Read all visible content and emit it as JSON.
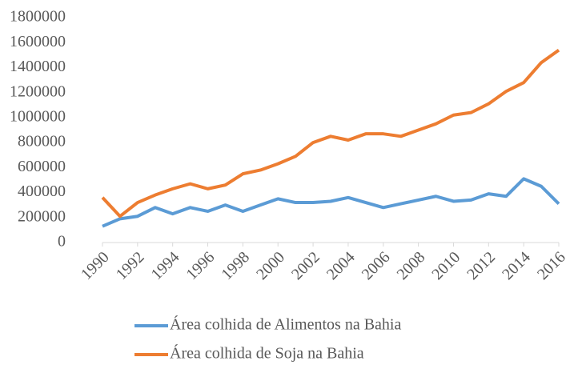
{
  "chart_data": {
    "type": "line",
    "x": [
      1990,
      1991,
      1992,
      1993,
      1994,
      1995,
      1996,
      1997,
      1998,
      1999,
      2000,
      2001,
      2002,
      2003,
      2004,
      2005,
      2006,
      2007,
      2008,
      2009,
      2010,
      2011,
      2012,
      2013,
      2014,
      2015,
      2016
    ],
    "xlim": [
      1990,
      2016
    ],
    "xticks": [
      1990,
      1992,
      1994,
      1996,
      1998,
      2000,
      2002,
      2004,
      2006,
      2008,
      2010,
      2012,
      2014,
      2016
    ],
    "ylim": [
      0,
      1800000
    ],
    "yticks": [
      0,
      200000,
      400000,
      600000,
      800000,
      1000000,
      1200000,
      1400000,
      1600000,
      1800000
    ],
    "grid": false,
    "legend": "bottom",
    "series": [
      {
        "name": "Área colhida de Alimentos na Bahia",
        "color": "#5b9bd5",
        "values": [
          130000,
          190000,
          210000,
          280000,
          230000,
          280000,
          250000,
          300000,
          250000,
          300000,
          350000,
          320000,
          320000,
          330000,
          360000,
          320000,
          280000,
          310000,
          340000,
          370000,
          330000,
          340000,
          390000,
          370000,
          510000,
          450000,
          310000
        ]
      },
      {
        "name": "Área colhida de Soja na Bahia",
        "color": "#ed7d31",
        "values": [
          360000,
          210000,
          320000,
          380000,
          430000,
          470000,
          430000,
          460000,
          550000,
          580000,
          630000,
          690000,
          800000,
          850000,
          820000,
          870000,
          870000,
          850000,
          900000,
          950000,
          1020000,
          1040000,
          1110000,
          1210000,
          1280000,
          1440000,
          1540000
        ]
      }
    ]
  }
}
